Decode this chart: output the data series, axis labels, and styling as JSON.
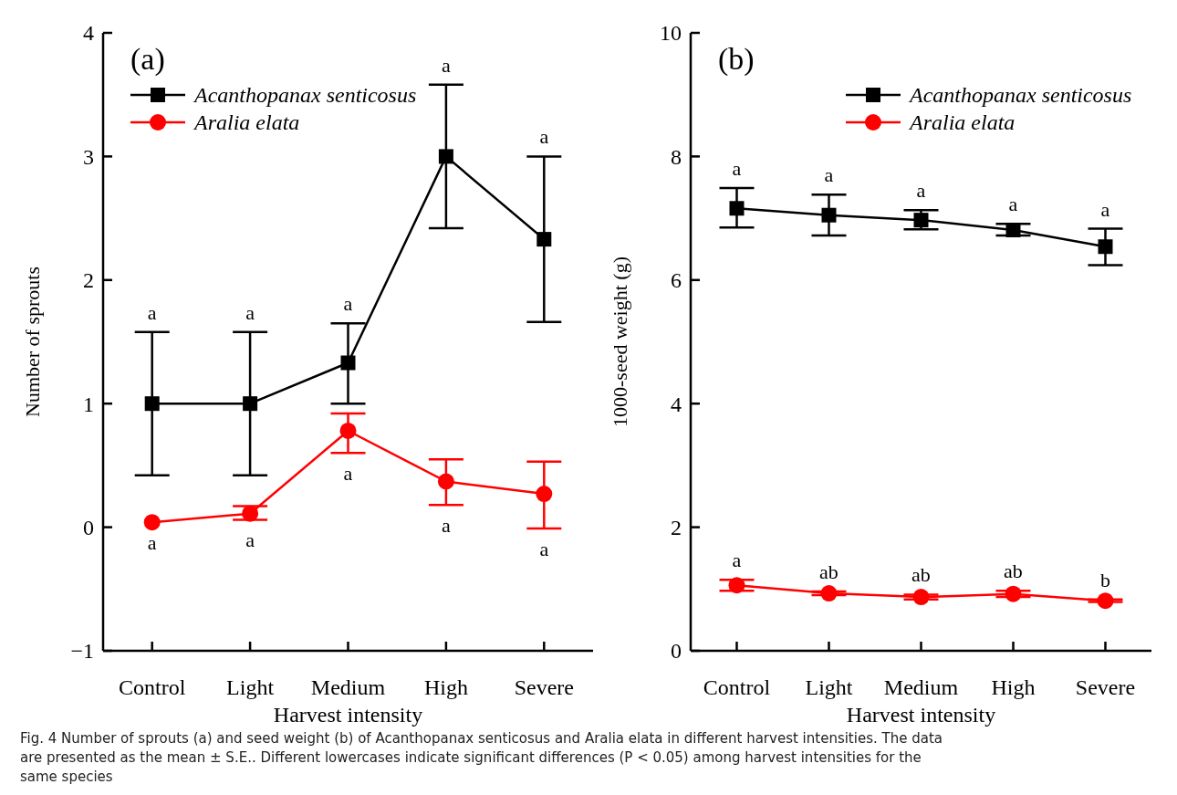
{
  "chart_data": [
    {
      "type": "line",
      "title": "(a)",
      "xlabel": "Harvest intensity",
      "ylabel": "Number of sprouts",
      "categories": [
        "Control",
        "Light",
        "Medium",
        "High",
        "Severe"
      ],
      "series": [
        {
          "name": "Acanthopanax senticosus",
          "color": "#000000",
          "marker": "square",
          "values": [
            1,
            1,
            1.33,
            3,
            2.33
          ],
          "errors": [
            [
              0.42,
              1.58
            ],
            [
              0.42,
              1.58
            ],
            [
              1.0,
              1.65
            ],
            [
              2.42,
              3.58
            ],
            [
              1.66,
              3.0
            ]
          ]
        },
        {
          "name": "Aralia elata",
          "color": "#ff0000",
          "marker": "circle",
          "values": [
            0.04,
            0.11,
            0.78,
            0.37,
            0.27
          ],
          "errors": [
            null,
            [
              0.06,
              0.17
            ],
            [
              0.6,
              0.92
            ],
            [
              0.18,
              0.55
            ],
            [
              -0.01,
              0.53
            ]
          ]
        }
      ],
      "ylim": [
        -1,
        4
      ],
      "yticks": [
        {
          "value": -1,
          "label": "−1"
        },
        0,
        1,
        2,
        3,
        4
      ],
      "grid": false,
      "legend": "top left",
      "line_style": "solid",
      "annotations": [
        {
          "text": "a",
          "x": "Control",
          "y": 1.58
        },
        {
          "text": "a",
          "x": "Light",
          "y": 1.58
        },
        {
          "text": "a",
          "x": "Medium",
          "y": 1.65
        },
        {
          "text": "a",
          "x": "High",
          "y": 3.58
        },
        {
          "text": "a",
          "x": "Severe",
          "y": 3.0
        },
        {
          "text": "a",
          "x": "Control",
          "y": 0.04
        },
        {
          "text": "a",
          "x": "Light",
          "y": 0.06
        },
        {
          "text": "a",
          "x": "Medium",
          "y": 0.6
        },
        {
          "text": "a",
          "x": "High",
          "y": 0.18
        },
        {
          "text": "a",
          "x": "Severe",
          "y": -0.01
        },
        "Fig. 4 Number of sprouts (a) and seed weight (b) of Acanthopanax senticosus and Aralia elata in different harvest intensities. The data are presented as the mean ± S.E.. Different lowercases indicate significant differences (P < 0.05) among harvest intensities for the same species"
      ]
    },
    {
      "type": "line",
      "title": "(b)",
      "xlabel": "Harvest intensity",
      "ylabel": "1000-seed weight (g)",
      "categories": [
        "Control",
        "Light",
        "Medium",
        "High",
        "Severe"
      ],
      "series": [
        {
          "name": "Acanthopanax senticosus",
          "color": "#000000",
          "marker": "square",
          "values": [
            7.16,
            7.05,
            6.97,
            6.81,
            6.54
          ],
          "errors": [
            [
              6.85,
              7.49
            ],
            [
              6.72,
              7.38
            ],
            [
              6.82,
              7.13
            ],
            [
              6.72,
              6.91
            ],
            [
              6.24,
              6.83
            ]
          ]
        },
        {
          "name": "Aralia elata",
          "color": "#ff0000",
          "marker": "circle",
          "values": [
            1.06,
            0.93,
            0.87,
            0.92,
            0.81
          ],
          "errors": [
            0.09,
            0.03,
            0.04,
            0.05,
            0.02
          ]
        }
      ],
      "ylim": [
        0,
        10
      ],
      "yticks": [
        0,
        2,
        4,
        6,
        8,
        10
      ],
      "grid": false,
      "legend": "top right",
      "line_style": "solid",
      "annotations": [
        {
          "text": "a",
          "x": "Control",
          "y": 7.49
        },
        {
          "text": "a",
          "x": "Light",
          "y": 7.38
        },
        {
          "text": "a",
          "x": "Medium",
          "y": 7.13
        },
        {
          "text": "a",
          "x": "High",
          "y": 6.91
        },
        {
          "text": "a",
          "x": "Severe",
          "y": 6.83
        },
        {
          "text": "a",
          "x": "Control",
          "y": 1.15
        },
        {
          "text": "ab",
          "x": "Light",
          "y": 0.96
        },
        {
          "text": "ab",
          "x": "Medium",
          "y": 0.91
        },
        {
          "text": "ab",
          "x": "High",
          "y": 0.97
        },
        {
          "text": "b",
          "x": "Severe",
          "y": 0.83
        }
      ]
    }
  ]
}
